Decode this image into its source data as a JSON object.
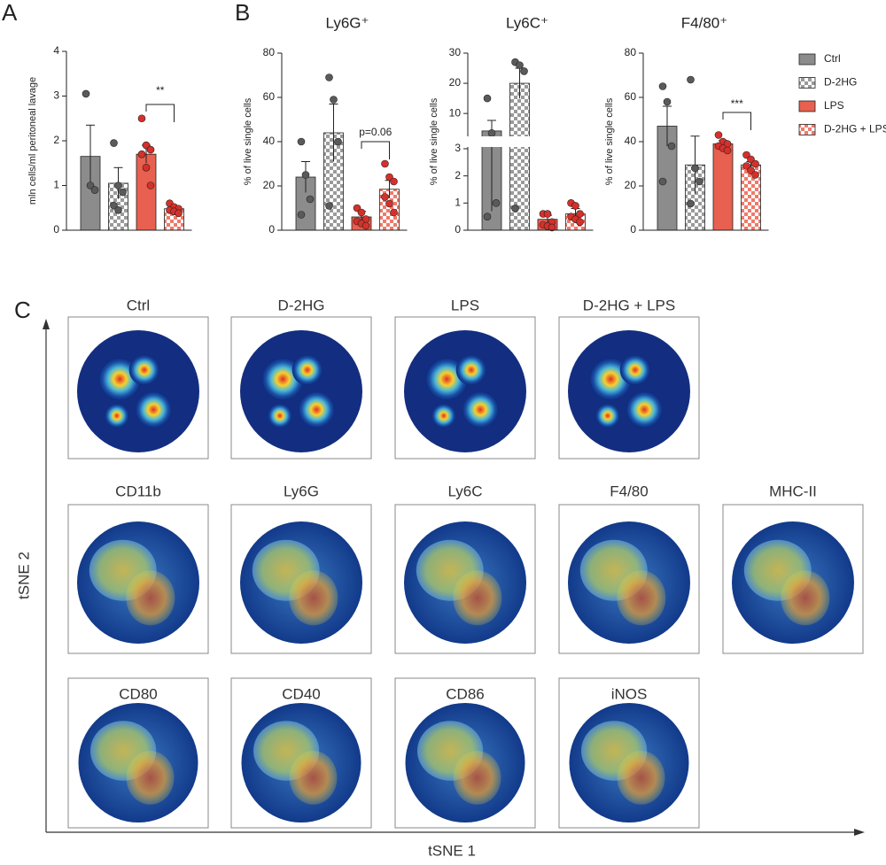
{
  "legend": [
    {
      "name": "Ctrl",
      "color": "#8c8c8c",
      "pattern": "solid"
    },
    {
      "name": "D-2HG",
      "color": "#8c8c8c",
      "pattern": "checker"
    },
    {
      "name": "LPS",
      "color": "#e8604f",
      "pattern": "solid"
    },
    {
      "name": "D-2HG + LPS",
      "color": "#e8604f",
      "pattern": "checker"
    }
  ],
  "chart_data": [
    {
      "type": "bar",
      "panel": "A",
      "ylabel": "mln cells/ml peritoneal lavage",
      "values": [
        1.65,
        1.05,
        1.7,
        0.48
      ],
      "errors": [
        0.7,
        0.35,
        0.2,
        0.06
      ],
      "points": [
        [
          3.05,
          1.0,
          0.9
        ],
        [
          1.95,
          1.0,
          0.85,
          0.55,
          0.45
        ],
        [
          2.5,
          1.9,
          1.8,
          1.7,
          1.4,
          1.0
        ],
        [
          0.6,
          0.52,
          0.48,
          0.45,
          0.42,
          0.38
        ]
      ],
      "ylim": [
        0,
        4
      ],
      "yticks": [
        0,
        1,
        2,
        3,
        4
      ],
      "annotation": "**"
    },
    {
      "type": "bar",
      "panel": "B",
      "title": "Ly6G⁺",
      "ylabel": "% of live single cells",
      "values": [
        24,
        44,
        6,
        18.5
      ],
      "errors": [
        7,
        13,
        2.5,
        4
      ],
      "points": [
        [
          40,
          25,
          14,
          7
        ],
        [
          69,
          59,
          40,
          11
        ],
        [
          10,
          8,
          5,
          4,
          3,
          2
        ],
        [
          30,
          24,
          22,
          15,
          12,
          8
        ]
      ],
      "ylim": [
        0,
        80
      ],
      "yticks": [
        0,
        20,
        40,
        60,
        80
      ],
      "annotation": "p=0.06"
    },
    {
      "type": "bar",
      "title": "Ly6C⁺",
      "ylabel": "% of live single cells",
      "values": [
        4.2,
        20,
        0.4,
        0.6
      ],
      "errors": [
        3.5,
        5,
        0.15,
        0.2
      ],
      "points": [
        [
          15,
          3.5,
          1.0,
          0.5
        ],
        [
          27,
          26,
          24,
          0.8
        ],
        [
          0.6,
          0.6,
          0.3,
          0.2,
          0.15,
          0.1
        ],
        [
          1.0,
          0.9,
          0.6,
          0.5,
          0.4,
          0.3
        ]
      ],
      "ylim": [
        0,
        30
      ],
      "ysegments": [
        [
          0,
          3
        ],
        [
          3,
          30
        ]
      ],
      "yticks": [
        0,
        1,
        2,
        3,
        10,
        20,
        30
      ]
    },
    {
      "type": "bar",
      "title": "F4/80⁺",
      "ylabel": "% of live single cells",
      "values": [
        47,
        29.5,
        39,
        29.5
      ],
      "errors": [
        9,
        13,
        1.5,
        1.5
      ],
      "points": [
        [
          65,
          58,
          38,
          22
        ],
        [
          68,
          28,
          22,
          12
        ],
        [
          43,
          40,
          39,
          38,
          37,
          36
        ],
        [
          34,
          32,
          30,
          29,
          27,
          25
        ]
      ],
      "ylim": [
        0,
        80
      ],
      "yticks": [
        0,
        20,
        40,
        60,
        80
      ],
      "annotation": "***"
    }
  ],
  "tsne": {
    "panel": "C",
    "xlabel": "tSNE 1",
    "ylabel": "tSNE 2",
    "density": [
      "Ctrl",
      "D-2HG",
      "LPS",
      "D-2HG + LPS"
    ],
    "markers": [
      "CD11b",
      "Ly6G",
      "Ly6C",
      "F4/80",
      "MHC-II",
      "CD80",
      "CD40",
      "CD86",
      "iNOS"
    ]
  }
}
